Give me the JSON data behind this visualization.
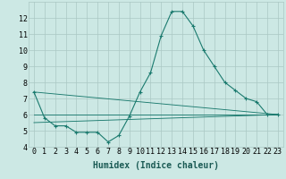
{
  "xlabel": "Humidex (Indice chaleur)",
  "ylabel": "",
  "background_color": "#cce8e4",
  "line_color": "#1a7a6e",
  "grid_color": "#aac8c4",
  "xlim": [
    -0.5,
    23.5
  ],
  "ylim": [
    4,
    13
  ],
  "yticks": [
    4,
    5,
    6,
    7,
    8,
    9,
    10,
    11,
    12
  ],
  "xticks": [
    0,
    1,
    2,
    3,
    4,
    5,
    6,
    7,
    8,
    9,
    10,
    11,
    12,
    13,
    14,
    15,
    16,
    17,
    18,
    19,
    20,
    21,
    22,
    23
  ],
  "series": [
    [
      0,
      7.4
    ],
    [
      1,
      5.8
    ],
    [
      2,
      5.3
    ],
    [
      3,
      5.3
    ],
    [
      4,
      4.9
    ],
    [
      5,
      4.9
    ],
    [
      6,
      4.9
    ],
    [
      7,
      4.3
    ],
    [
      8,
      4.7
    ],
    [
      9,
      5.9
    ],
    [
      10,
      7.4
    ],
    [
      11,
      8.6
    ],
    [
      12,
      10.9
    ],
    [
      13,
      12.4
    ],
    [
      14,
      12.4
    ],
    [
      15,
      11.5
    ],
    [
      16,
      10.0
    ],
    [
      17,
      9.0
    ],
    [
      18,
      8.0
    ],
    [
      19,
      7.5
    ],
    [
      20,
      7.0
    ],
    [
      21,
      6.8
    ],
    [
      22,
      6.0
    ],
    [
      23,
      6.0
    ]
  ],
  "line2": [
    [
      0,
      7.4
    ],
    [
      23,
      6.0
    ]
  ],
  "line3": [
    [
      0,
      6.0
    ],
    [
      23,
      6.0
    ]
  ],
  "line4": [
    [
      0,
      5.5
    ],
    [
      23,
      6.0
    ]
  ],
  "font_size_xlabel": 7,
  "tick_font_size": 6,
  "marker_size": 2.5,
  "line_width": 0.8
}
